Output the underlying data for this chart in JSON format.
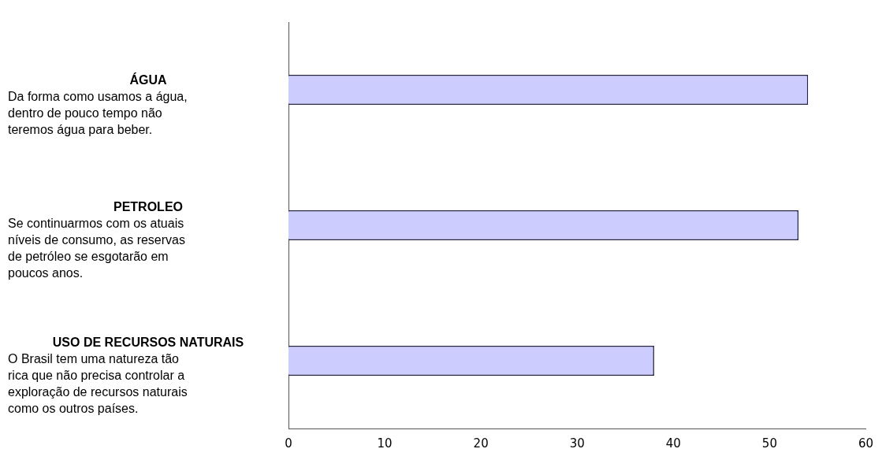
{
  "chart_data": {
    "type": "bar",
    "orientation": "horizontal",
    "categories": [
      "ÁGUA\nDa forma como usamos a água,\ndentro de pouco tempo não\nteremos água para beber.",
      "PETROLEO\nSe continuarmos com os atuais\nníveis de consumo, as reservas\nde petróleo se esgotarão em\npoucos anos.",
      "USO DE RECURSOS NATURAIS\nO Brasil tem uma natureza tão\nrica que não precisa controlar a\nexploração de recursos naturais\ncomo os outros países."
    ],
    "values": [
      54,
      53,
      38
    ],
    "color": "#ccccff",
    "xlim": [
      0,
      60
    ],
    "xticks": [
      0,
      10,
      20,
      30,
      40,
      50,
      60
    ],
    "grid": false,
    "legend": false
  }
}
